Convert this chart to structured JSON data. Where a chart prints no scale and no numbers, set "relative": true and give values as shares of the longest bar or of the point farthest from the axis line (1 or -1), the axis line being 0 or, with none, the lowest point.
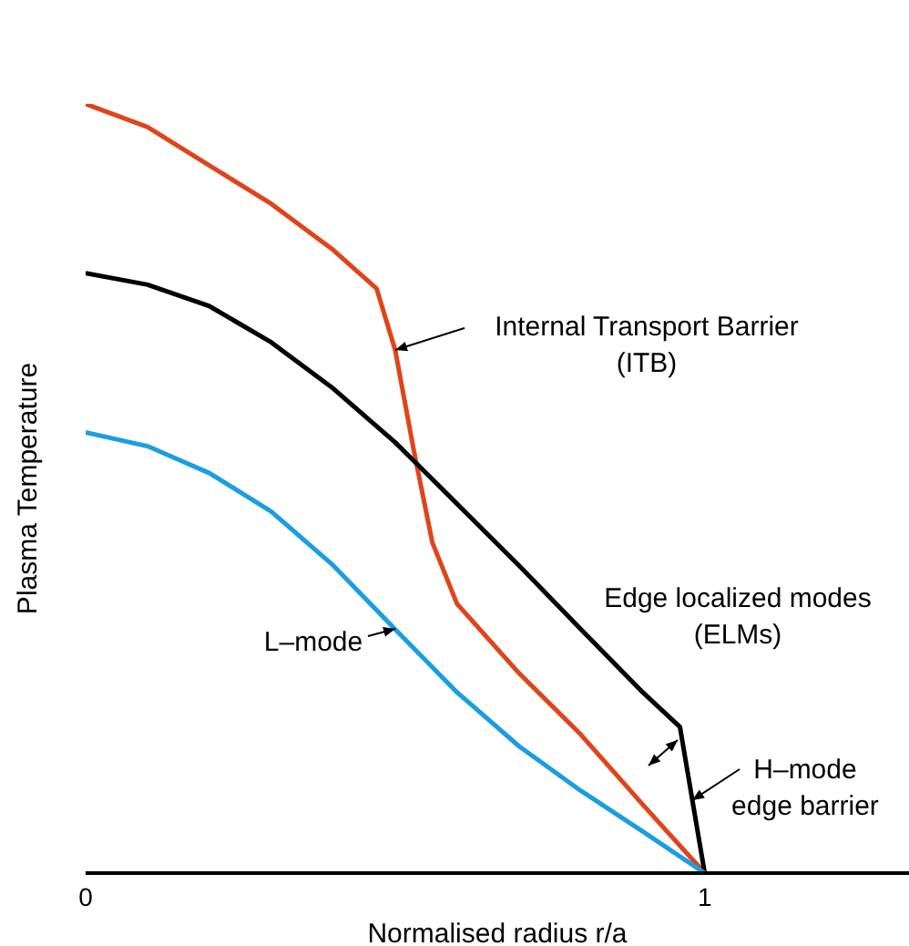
{
  "chart_data": {
    "type": "line",
    "relative": true,
    "xlabel": "Normalised radius r/a",
    "ylabel": "Plasma Temperature",
    "xlim": [
      0,
      1.33
    ],
    "xticks": [
      0,
      1
    ],
    "grid": false,
    "legend": false,
    "marker": "none",
    "line_style": "solid",
    "series": [
      {
        "color": "#e0441a",
        "x": [
          0,
          0.1,
          0.2,
          0.3,
          0.4,
          0.47,
          0.5,
          0.53,
          0.56,
          0.6,
          0.7,
          0.8,
          0.9,
          1.0
        ],
        "values": [
          1.0,
          0.97,
          0.92,
          0.87,
          0.81,
          0.76,
          0.68,
          0.55,
          0.43,
          0.35,
          0.26,
          0.18,
          0.089,
          0
        ]
      },
      {
        "color": "#000000",
        "x": [
          0,
          0.1,
          0.2,
          0.3,
          0.4,
          0.5,
          0.6,
          0.7,
          0.8,
          0.9,
          0.96,
          1.0
        ],
        "values": [
          0.78,
          0.765,
          0.737,
          0.69,
          0.63,
          0.56,
          0.48,
          0.4,
          0.317,
          0.235,
          0.19,
          0
        ]
      },
      {
        "color": "#1a9ee0",
        "x": [
          0,
          0.1,
          0.2,
          0.3,
          0.4,
          0.5,
          0.6,
          0.7,
          0.8,
          0.9,
          1.0
        ],
        "values": [
          0.573,
          0.555,
          0.52,
          0.47,
          0.4,
          0.317,
          0.235,
          0.165,
          0.107,
          0.054,
          0
        ]
      }
    ],
    "annotations": [
      "Internal Transport Barrier\n(ITB)",
      "L–mode",
      "Edge localized modes\n(ELMs)",
      "H–mode\nedge barrier"
    ]
  }
}
